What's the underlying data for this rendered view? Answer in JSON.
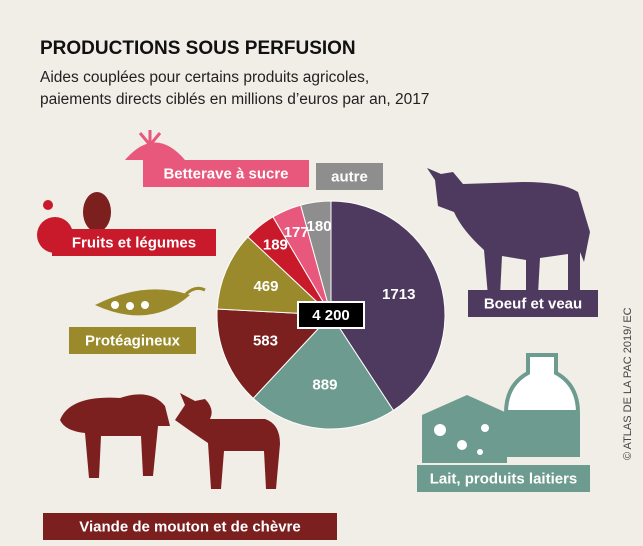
{
  "chart_data": {
    "type": "pie",
    "title": "PRODUCTIONS SOUS PERFUSION",
    "subtitle": [
      "Aides couplées pour certains produits agricoles,",
      "paiements directs ciblés en millions d’euros par an, 2017"
    ],
    "categories": [
      "Boeuf et veau",
      "Lait, produits laitiers",
      "Viande de mouton et de chèvre",
      "Protéagineux",
      "Fruits et légumes",
      "Betterave à sucre",
      "autre"
    ],
    "values": [
      1713,
      889,
      583,
      469,
      189,
      177,
      180
    ],
    "colors": [
      "#4e3a5f",
      "#6e9b8f",
      "#7b1f1f",
      "#9a8a2b",
      "#c81a2b",
      "#e8587c",
      "#8e8e8e"
    ],
    "total": 4200,
    "total_label": "4 200",
    "credit": "© ATLAS DE LA PAC 2019/ EC"
  }
}
